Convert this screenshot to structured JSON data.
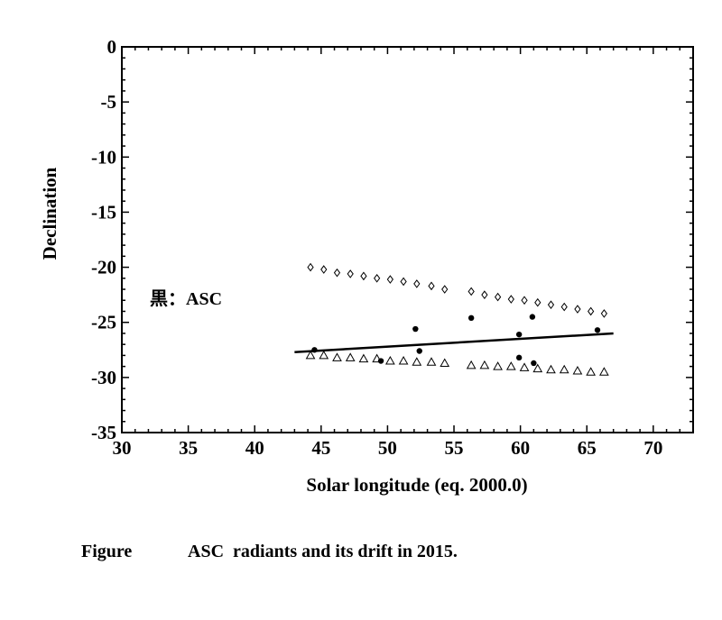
{
  "chart_data": {
    "type": "scatter",
    "xlabel": "Solar longitude (eq. 2000.0)",
    "ylabel": "Declination",
    "xlim": [
      30,
      73
    ],
    "ylim": [
      -35,
      0
    ],
    "x_ticks": [
      30,
      35,
      40,
      45,
      50,
      55,
      60,
      65,
      70
    ],
    "y_ticks": [
      0,
      -5,
      -10,
      -15,
      -20,
      -25,
      -30,
      -35
    ],
    "annotation": "黒：ASC",
    "series": [
      {
        "marker": "filled-circle",
        "points": [
          [
            44.5,
            -27.5
          ],
          [
            49.5,
            -28.5
          ],
          [
            52.1,
            -25.6
          ],
          [
            52.4,
            -27.6
          ],
          [
            56.3,
            -24.6
          ],
          [
            59.9,
            -26.1
          ],
          [
            59.9,
            -28.2
          ],
          [
            60.9,
            -24.5
          ],
          [
            61.0,
            -28.7
          ],
          [
            65.8,
            -25.7
          ]
        ]
      },
      {
        "marker": "open-diamond",
        "points": [
          [
            44.2,
            -20.0
          ],
          [
            45.2,
            -20.2
          ],
          [
            46.2,
            -20.5
          ],
          [
            47.2,
            -20.6
          ],
          [
            48.2,
            -20.8
          ],
          [
            49.2,
            -21.0
          ],
          [
            50.2,
            -21.1
          ],
          [
            51.2,
            -21.3
          ],
          [
            52.2,
            -21.5
          ],
          [
            53.3,
            -21.7
          ],
          [
            54.3,
            -22.0
          ],
          [
            56.3,
            -22.2
          ],
          [
            57.3,
            -22.5
          ],
          [
            58.3,
            -22.7
          ],
          [
            59.3,
            -22.9
          ],
          [
            60.3,
            -23.0
          ],
          [
            61.3,
            -23.2
          ],
          [
            62.3,
            -23.4
          ],
          [
            63.3,
            -23.6
          ],
          [
            64.3,
            -23.8
          ],
          [
            65.3,
            -24.0
          ],
          [
            66.3,
            -24.2
          ]
        ]
      },
      {
        "marker": "open-triangle",
        "points": [
          [
            44.2,
            -28.0
          ],
          [
            45.2,
            -28.0
          ],
          [
            46.2,
            -28.2
          ],
          [
            47.2,
            -28.2
          ],
          [
            48.2,
            -28.3
          ],
          [
            49.2,
            -28.3
          ],
          [
            50.2,
            -28.5
          ],
          [
            51.2,
            -28.5
          ],
          [
            52.2,
            -28.6
          ],
          [
            53.3,
            -28.6
          ],
          [
            54.3,
            -28.7
          ],
          [
            56.3,
            -28.9
          ],
          [
            57.3,
            -28.9
          ],
          [
            58.3,
            -29.0
          ],
          [
            59.3,
            -29.0
          ],
          [
            60.3,
            -29.1
          ],
          [
            61.3,
            -29.2
          ],
          [
            62.3,
            -29.3
          ],
          [
            63.3,
            -29.3
          ],
          [
            64.3,
            -29.4
          ],
          [
            65.3,
            -29.5
          ],
          [
            66.3,
            -29.5
          ]
        ]
      }
    ],
    "fit_line": [
      [
        43.0,
        -27.7
      ],
      [
        67.0,
        -26.0
      ]
    ]
  },
  "caption": {
    "label": "Figure",
    "text": "ASC  radiants and its drift in 2015."
  }
}
